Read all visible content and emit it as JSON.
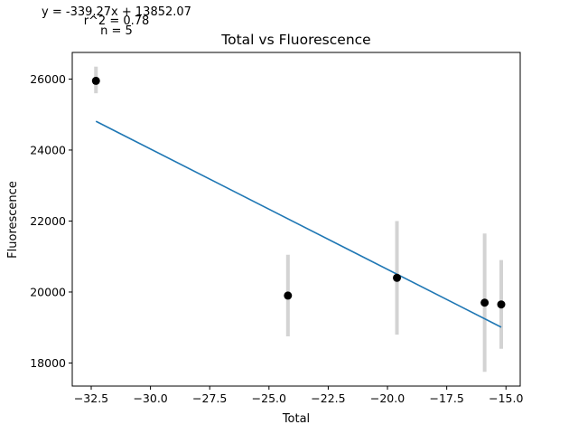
{
  "chart_data": {
    "type": "scatter",
    "title": "Total vs Fluorescence",
    "xlabel": "Total",
    "ylabel": "Fluorescence",
    "xlim": [
      -33.3,
      -14.4
    ],
    "ylim": [
      17350,
      26750
    ],
    "xticks": [
      -32.5,
      -30.0,
      -27.5,
      -25.0,
      -22.5,
      -20.0,
      -17.5,
      -15.0
    ],
    "xtick_labels": [
      "−32.5",
      "−30.0",
      "−27.5",
      "−25.0",
      "−22.5",
      "−20.0",
      "−17.5",
      "−15.0"
    ],
    "yticks": [
      18000,
      20000,
      22000,
      24000,
      26000
    ],
    "ytick_labels": [
      "18000",
      "20000",
      "22000",
      "24000",
      "26000"
    ],
    "grid": false,
    "points": [
      {
        "x": -32.3,
        "y": 25950,
        "err_low": 25600,
        "err_high": 26350
      },
      {
        "x": -24.2,
        "y": 19900,
        "err_low": 18750,
        "err_high": 21050
      },
      {
        "x": -19.6,
        "y": 20400,
        "err_low": 18800,
        "err_high": 22000
      },
      {
        "x": -15.9,
        "y": 19700,
        "err_low": 17750,
        "err_high": 21650
      },
      {
        "x": -15.2,
        "y": 19650,
        "err_low": 18400,
        "err_high": 20900
      }
    ],
    "fit": {
      "slope": -339.27,
      "intercept": 13852.07,
      "x_range": [
        -32.3,
        -15.2
      ]
    },
    "annotations": {
      "equation": "y = -339.27x + 13852.07",
      "r2": "r^2 = 0.78",
      "n": "n = 5"
    },
    "colors": {
      "points": "#000000",
      "errorbars": "#d3d3d3",
      "fit": "#1f77b4"
    }
  }
}
